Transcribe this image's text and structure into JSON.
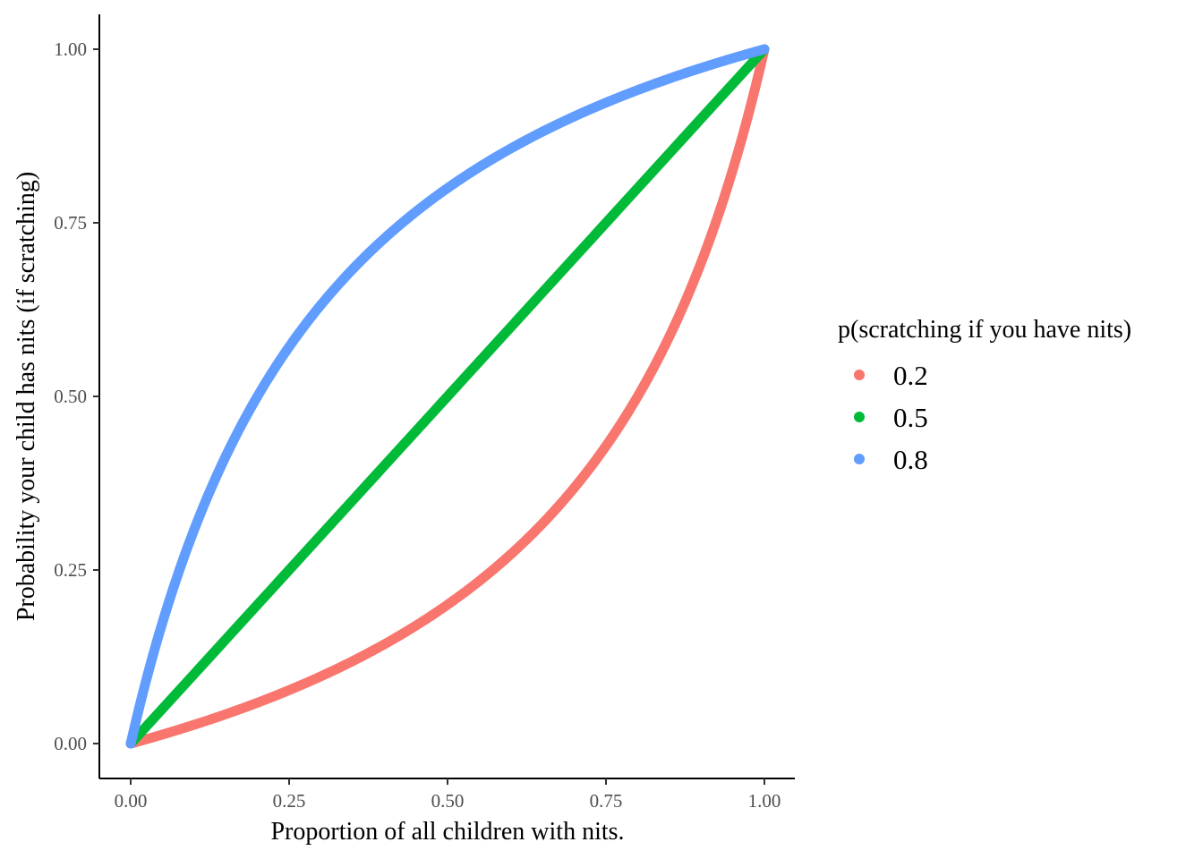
{
  "chart_data": {
    "type": "line",
    "title": "",
    "xlabel": "Proportion of all children with nits.",
    "ylabel": "Probability your child has nits (if scratching)",
    "xlim": [
      0,
      1
    ],
    "ylim": [
      0,
      1
    ],
    "x_ticks": [
      "0.00",
      "0.25",
      "0.50",
      "0.75",
      "1.00"
    ],
    "y_ticks": [
      "0.00",
      "0.25",
      "0.50",
      "0.75",
      "1.00"
    ],
    "grid": false,
    "legend": {
      "title": "p(scratching if you have nits)",
      "position": "right"
    },
    "x": [
      0,
      0.1,
      0.2,
      0.3,
      0.4,
      0.5,
      0.6,
      0.7,
      0.8,
      0.9,
      1.0
    ],
    "series": [
      {
        "name": "0.2",
        "color": "#f8766d",
        "values": [
          0.0,
          0.027,
          0.059,
          0.097,
          0.143,
          0.2,
          0.273,
          0.368,
          0.5,
          0.692,
          1.0
        ]
      },
      {
        "name": "0.5",
        "color": "#00ba38",
        "values": [
          0.0,
          0.1,
          0.2,
          0.3,
          0.4,
          0.5,
          0.6,
          0.7,
          0.8,
          0.9,
          1.0
        ]
      },
      {
        "name": "0.8",
        "color": "#619cff",
        "values": [
          0.0,
          0.308,
          0.5,
          0.632,
          0.727,
          0.8,
          0.857,
          0.903,
          0.941,
          0.973,
          1.0
        ]
      }
    ]
  }
}
